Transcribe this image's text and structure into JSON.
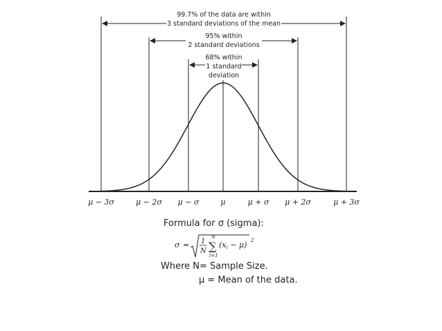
{
  "diagram": {
    "annotations": {
      "three_sd_line1": "99.7% of the data are within",
      "three_sd_line2": "3 standard deviations of the mean",
      "two_sd_line1": "95% within",
      "two_sd_line2": "2 standard deviations",
      "one_sd_line1": "68% within",
      "one_sd_line2": "1 standard",
      "one_sd_line3": "deviation"
    },
    "axis_labels": [
      "μ − 3σ",
      "μ − 2σ",
      "μ − σ",
      "μ",
      "μ + σ",
      "μ + 2σ",
      "μ + 3σ"
    ]
  },
  "formula": {
    "label": "Formula for σ (sigma):",
    "sigma": "σ",
    "equals": "=",
    "numerator": "1",
    "denominator": "N",
    "sum_upper": "N",
    "sum_lower": "i=1",
    "sum_symbol": "∑",
    "term": "(x",
    "term_sub": "i",
    "term_rest": " − μ)",
    "exponent": "2"
  },
  "notes": {
    "line1": "Where N= Sample Size.",
    "line2": "μ = Mean of the data."
  }
}
